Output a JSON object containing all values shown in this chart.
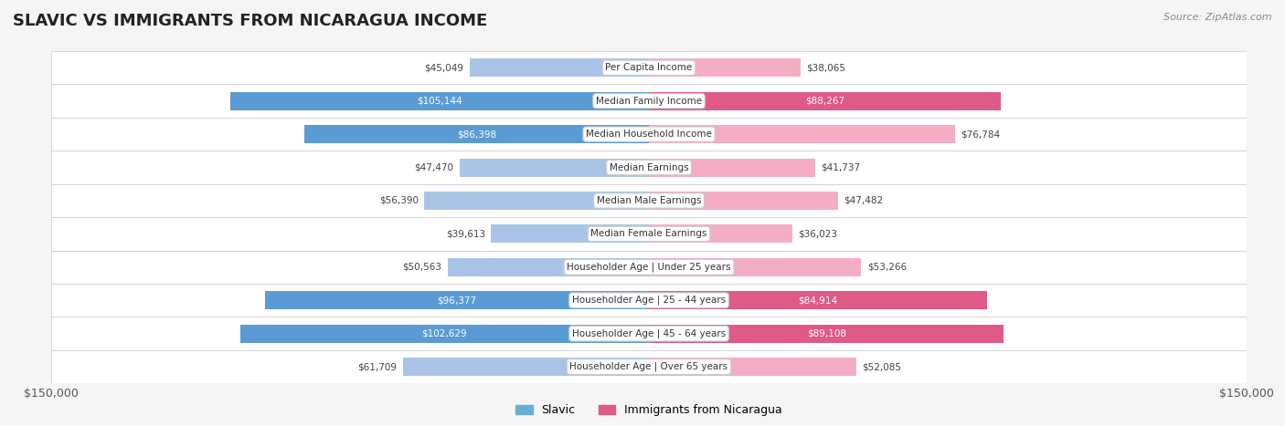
{
  "title": "SLAVIC VS IMMIGRANTS FROM NICARAGUA INCOME",
  "source": "Source: ZipAtlas.com",
  "categories": [
    "Per Capita Income",
    "Median Family Income",
    "Median Household Income",
    "Median Earnings",
    "Median Male Earnings",
    "Median Female Earnings",
    "Householder Age | Under 25 years",
    "Householder Age | 25 - 44 years",
    "Householder Age | 45 - 64 years",
    "Householder Age | Over 65 years"
  ],
  "slavic_values": [
    45049,
    105144,
    86398,
    47470,
    56390,
    39613,
    50563,
    96377,
    102629,
    61709
  ],
  "nicaragua_values": [
    38065,
    88267,
    76784,
    41737,
    47482,
    36023,
    53266,
    84914,
    89108,
    52085
  ],
  "slavic_color_light": "#aac4e8",
  "slavic_color_dark": "#5b9bd5",
  "nicaragua_color_light": "#f4aec4",
  "nicaragua_color_dark": "#e05a87",
  "max_value": 150000,
  "bar_height": 0.55,
  "bg_color": "#f5f5f5",
  "row_bg_color": "#ececec",
  "label_bg_color": "#ffffff",
  "legend_slavic_color": "#6aaed6",
  "legend_nicaragua_color": "#e05a87"
}
